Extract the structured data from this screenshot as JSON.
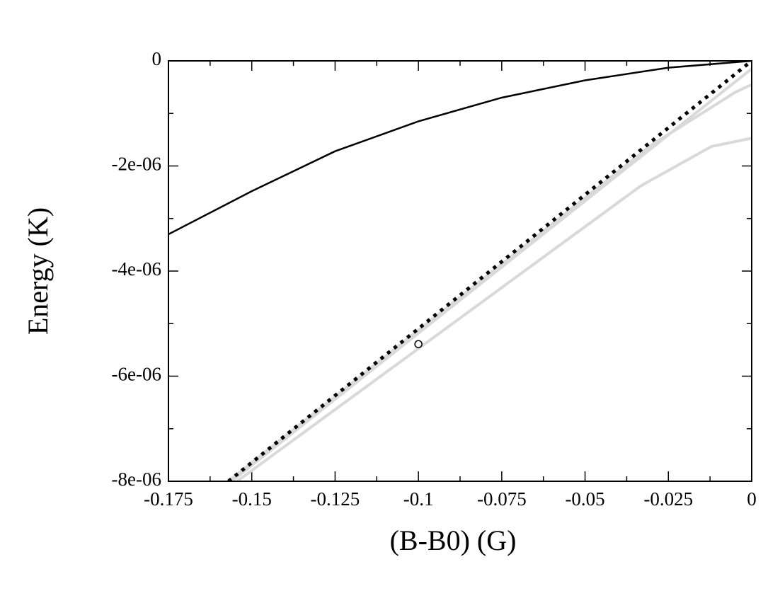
{
  "chart_data": {
    "type": "line",
    "xlabel": "(B-B0) (G)",
    "ylabel": "Energy (K)",
    "xlim": [
      -0.175,
      0
    ],
    "ylim": [
      -8e-06,
      0
    ],
    "xticks": [
      -0.175,
      -0.15,
      -0.125,
      -0.1,
      -0.075,
      -0.05,
      -0.025,
      0
    ],
    "xminor": [
      -0.1625,
      -0.1375,
      -0.1125,
      -0.0875,
      -0.0625,
      -0.0375,
      -0.0125
    ],
    "yticks": [
      {
        "value": -8e-06,
        "label": "-8e-06"
      },
      {
        "value": -6e-06,
        "label": "-6e-06"
      },
      {
        "value": -4e-06,
        "label": "-4e-06"
      },
      {
        "value": -2e-06,
        "label": "-2e-06"
      },
      0
    ],
    "yminor": [
      -7e-06,
      -5e-06,
      -3e-06,
      -1e-06
    ],
    "series": [
      {
        "color": "#d9d9d9",
        "width": 4,
        "style": "solid",
        "x": [
          -0.1544,
          -0.0333,
          -0.0121,
          0
        ],
        "values": [
          -8e-06,
          -2.38e-06,
          -1.63e-06,
          -1.47e-06
        ]
      },
      {
        "color": "#d9d9d9",
        "width": 4,
        "style": "solid",
        "x": [
          -0.157,
          -0.03,
          -0.005,
          0
        ],
        "values": [
          -8e-06,
          -1.6e-06,
          -6e-07,
          -4.5e-07
        ]
      },
      {
        "color": "#d9d9d9",
        "width": 4,
        "style": "solid",
        "x": [
          -0.156,
          0
        ],
        "values": [
          -8e-06,
          -1.5e-07
        ]
      },
      {
        "color": "#000000",
        "width": 5,
        "style": "dotted",
        "x": [
          -0.157,
          0
        ],
        "values": [
          -8e-06,
          0
        ]
      },
      {
        "color": "#000000",
        "width": 2.5,
        "style": "solid",
        "x": [
          -0.175,
          -0.15,
          -0.125,
          -0.1,
          -0.075,
          -0.05,
          -0.025,
          0
        ],
        "values": [
          -3.3e-06,
          -2.48e-06,
          -1.72e-06,
          -1.15e-06,
          -7e-07,
          -3.7e-07,
          -1.3e-07,
          0
        ]
      }
    ],
    "markers": {
      "color": "#000000",
      "x": [
        -0.1
      ],
      "values": [
        -5.39e-06
      ]
    }
  }
}
